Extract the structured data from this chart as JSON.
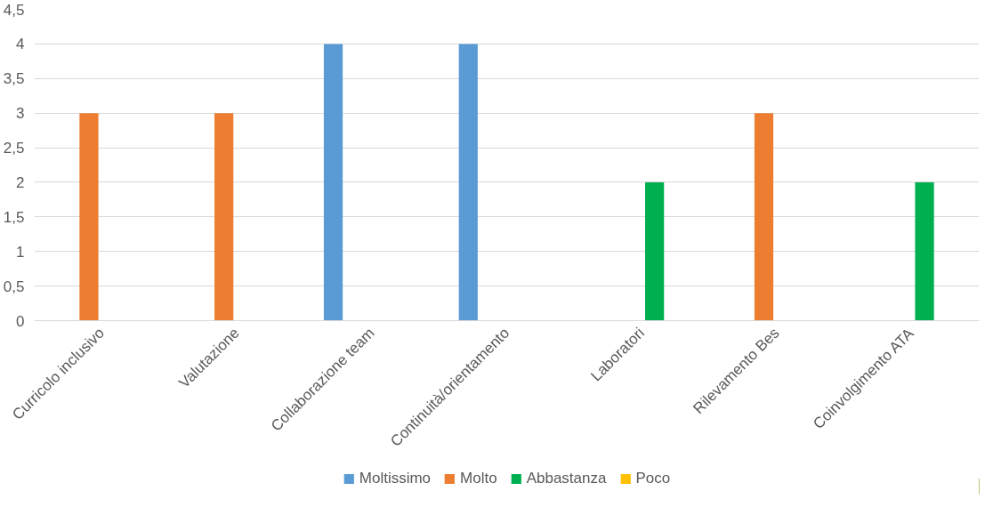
{
  "chart_data": {
    "type": "bar",
    "categories": [
      "Curricolo inclusivo",
      "Valutazione",
      "Collaborazione team",
      "Continuità/orientamento",
      "Laboratori",
      "Rilevamento Bes",
      "Coinvolgimento ATA"
    ],
    "series": [
      {
        "name": "Moltissimo",
        "color": "#5b9bd5",
        "values": [
          null,
          null,
          4,
          4,
          null,
          null,
          null
        ]
      },
      {
        "name": "Molto",
        "color": "#ed7d31",
        "values": [
          3,
          3,
          null,
          null,
          null,
          3,
          null
        ]
      },
      {
        "name": "Abbastanza",
        "color": "#00b050",
        "values": [
          null,
          null,
          null,
          null,
          2,
          null,
          2
        ]
      },
      {
        "name": "Poco",
        "color": "#ffc000",
        "values": [
          null,
          null,
          null,
          null,
          null,
          null,
          null
        ]
      }
    ],
    "ylim": [
      0,
      4.5
    ],
    "yticks": [
      {
        "value": 0,
        "label": "0"
      },
      {
        "value": 0.5,
        "label": "0,5"
      },
      {
        "value": 1,
        "label": "1"
      },
      {
        "value": 1.5,
        "label": "1,5"
      },
      {
        "value": 2,
        "label": "2"
      },
      {
        "value": 2.5,
        "label": "2,5"
      },
      {
        "value": 3,
        "label": "3"
      },
      {
        "value": 3.5,
        "label": "3,5"
      },
      {
        "value": 4,
        "label": "4"
      },
      {
        "value": 4.5,
        "label": "4,5"
      }
    ],
    "grid": "y",
    "legend": "bottom"
  }
}
